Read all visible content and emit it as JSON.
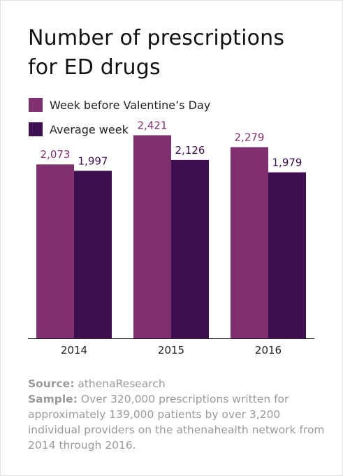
{
  "title_lines": [
    "Number of prescriptions",
    "for ED drugs"
  ],
  "colors": {
    "week_before": "#80306e",
    "average": "#3e1050",
    "axis": "#222222",
    "notes": "#9a9a9a"
  },
  "legend": [
    {
      "label": "Week before Valentine’s Day",
      "color": "#80306e"
    },
    {
      "label": "Average week",
      "color": "#3e1050"
    }
  ],
  "chart_data": {
    "type": "bar",
    "title": "Number of prescriptions for ED drugs",
    "categories": [
      "2014",
      "2015",
      "2016"
    ],
    "series": [
      {
        "name": "Week before Valentine’s Day",
        "values": [
          2073,
          2421,
          2279
        ],
        "labels": [
          "2,073",
          "2,421",
          "2,279"
        ]
      },
      {
        "name": "Average week",
        "values": [
          1997,
          2126,
          1979
        ],
        "labels": [
          "1,997",
          "2,126",
          "1,979"
        ]
      }
    ],
    "ylim": [
      0,
      2700
    ],
    "xlabel": "",
    "ylabel": "",
    "grid": false,
    "legend_position": "top-left"
  },
  "notes": {
    "source_label": "Source:",
    "source_text": "athenaResearch",
    "sample_label": "Sample:",
    "sample_text": "Over 320,000 prescriptions written for approximately 139,000 patients by over 3,200 individual providers on the athenahealth network from 2014 through 2016."
  }
}
